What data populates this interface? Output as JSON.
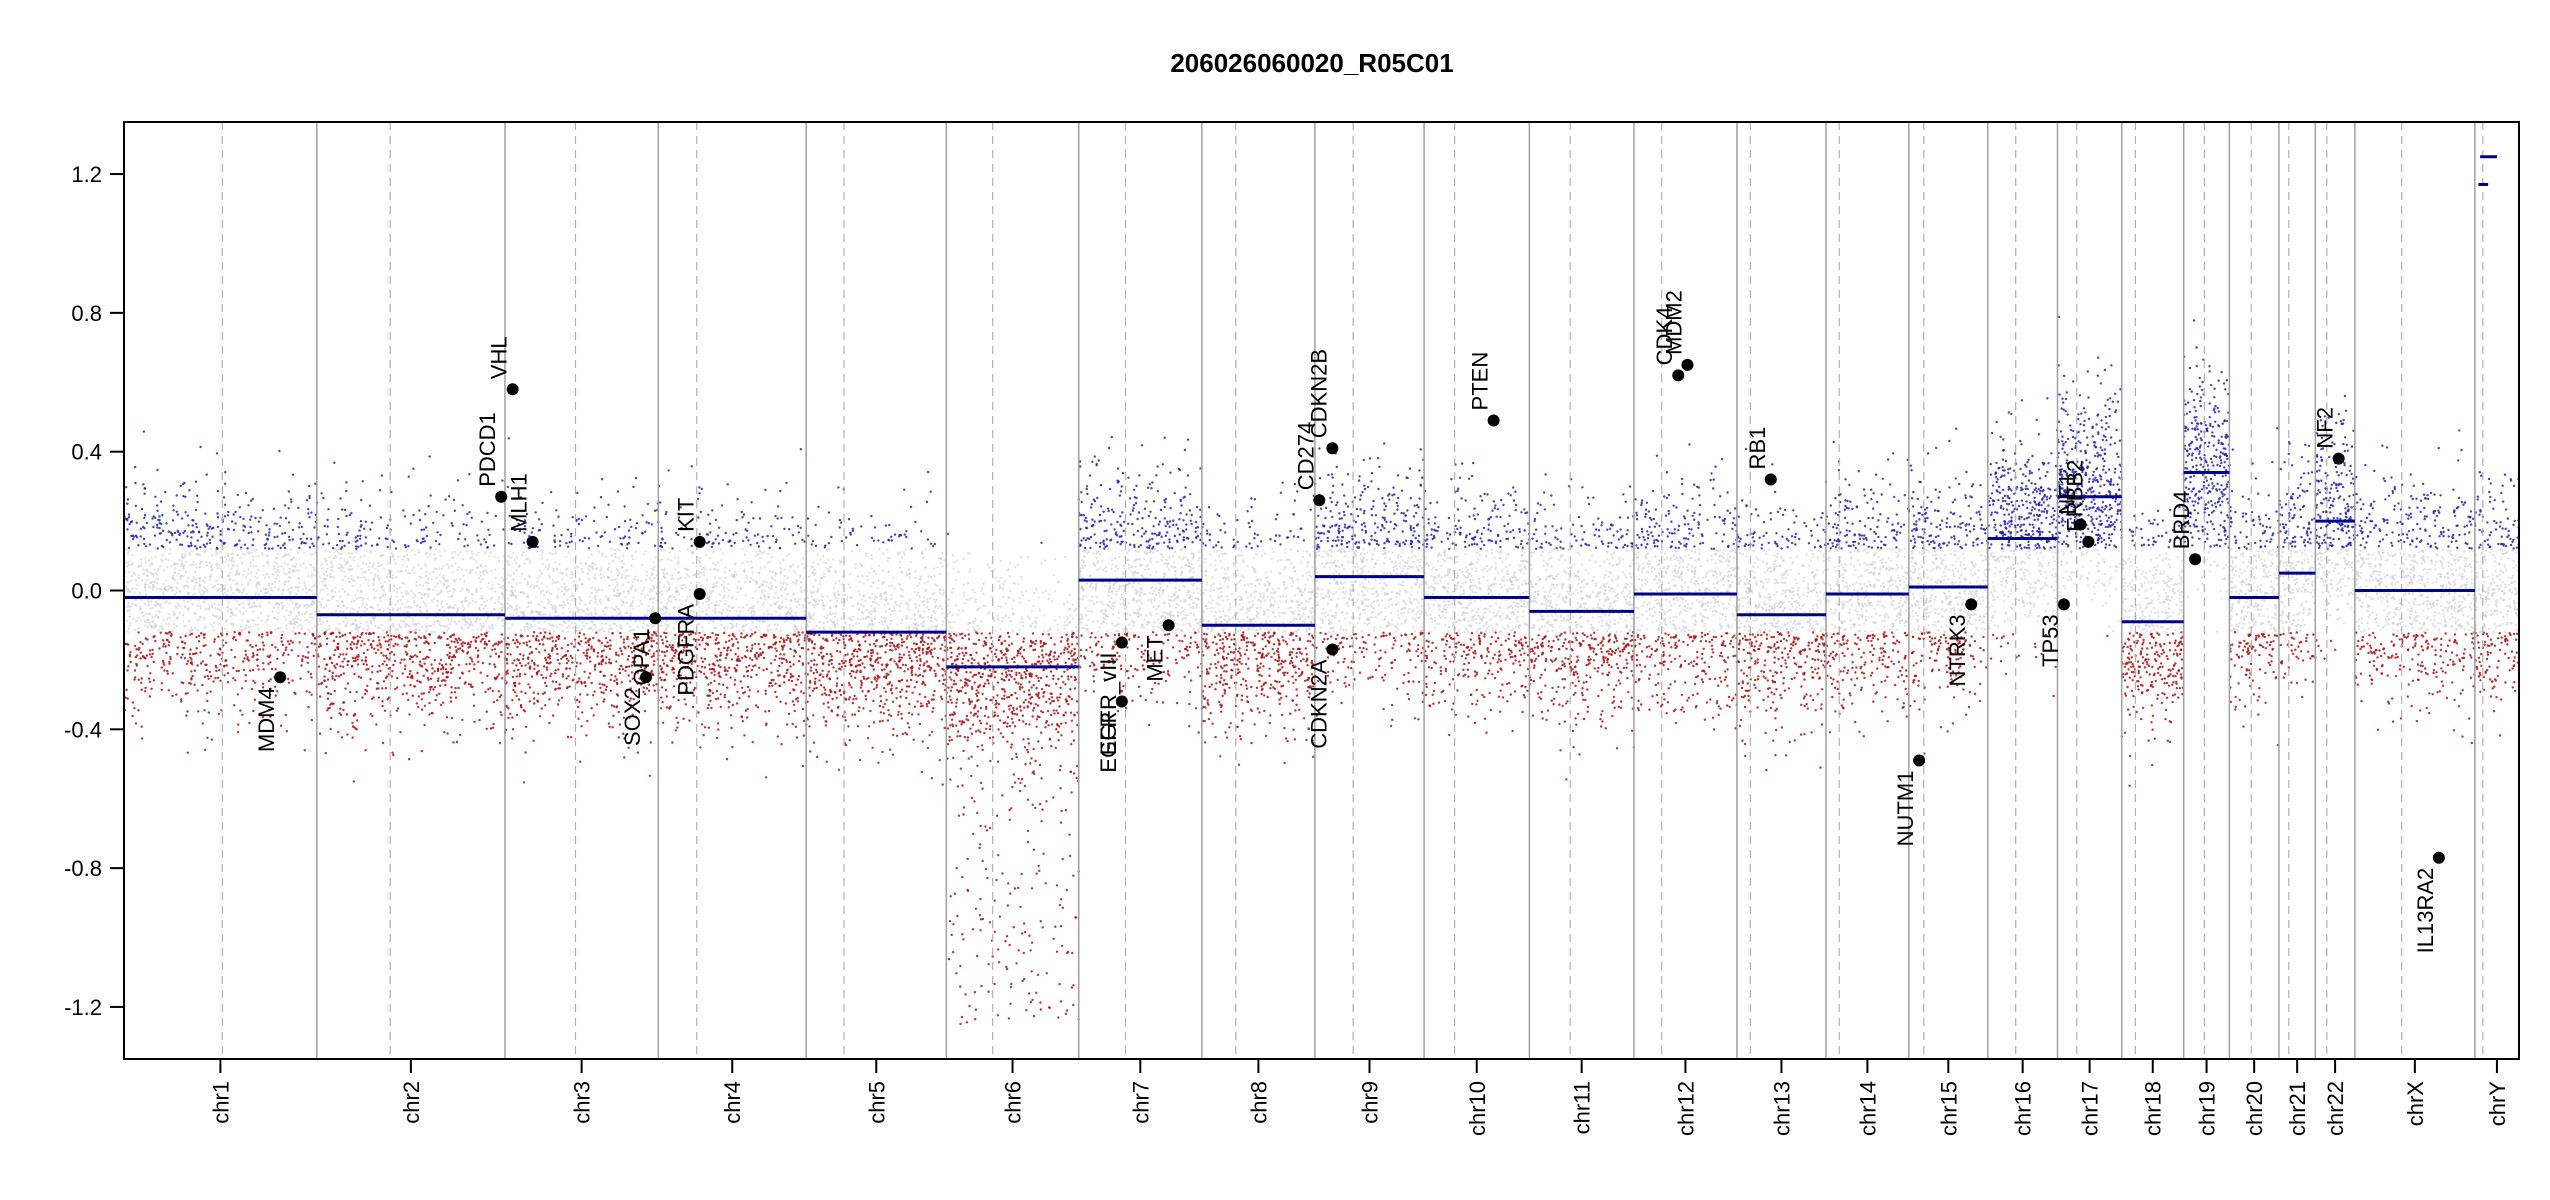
{
  "chart_data": {
    "type": "scatter",
    "title": "206026060020_R05C01",
    "xlabel": "",
    "ylabel": "",
    "ylim": [
      -1.35,
      1.35
    ],
    "y_ticks": [
      -1.2,
      -0.8,
      -0.4,
      0.0,
      0.4,
      0.8,
      1.2
    ],
    "y_tick_labels": [
      "-1.2",
      "-0.8",
      "-0.4",
      "0.0",
      "0.4",
      "0.8",
      "1.2"
    ],
    "grid": false,
    "chromosomes": [
      {
        "name": "chr1",
        "size": 249,
        "centromere": 0.51,
        "segments": [
          {
            "from": 0,
            "to": 1,
            "value": -0.02
          }
        ]
      },
      {
        "name": "chr2",
        "size": 243,
        "centromere": 0.39,
        "segments": [
          {
            "from": 0,
            "to": 1,
            "value": -0.07
          }
        ]
      },
      {
        "name": "chr3",
        "size": 198,
        "centromere": 0.46,
        "segments": [
          {
            "from": 0,
            "to": 1,
            "value": -0.08
          }
        ]
      },
      {
        "name": "chr4",
        "size": 191,
        "centromere": 0.26,
        "segments": [
          {
            "from": 0,
            "to": 1,
            "value": -0.08
          }
        ]
      },
      {
        "name": "chr5",
        "size": 181,
        "centromere": 0.27,
        "segments": [
          {
            "from": 0,
            "to": 1,
            "value": -0.12
          }
        ]
      },
      {
        "name": "chr6",
        "size": 171,
        "centromere": 0.35,
        "segments": [
          {
            "from": 0,
            "to": 1,
            "value": -0.22
          }
        ]
      },
      {
        "name": "chr7",
        "size": 159,
        "centromere": 0.38,
        "segments": [
          {
            "from": 0,
            "to": 1,
            "value": 0.03
          }
        ]
      },
      {
        "name": "chr8",
        "size": 146,
        "centromere": 0.3,
        "segments": [
          {
            "from": 0,
            "to": 1,
            "value": -0.1
          }
        ]
      },
      {
        "name": "chr9",
        "size": 141,
        "centromere": 0.35,
        "segments": [
          {
            "from": 0,
            "to": 1,
            "value": 0.04
          }
        ]
      },
      {
        "name": "chr10",
        "size": 136,
        "centromere": 0.29,
        "segments": [
          {
            "from": 0,
            "to": 1,
            "value": -0.02
          }
        ]
      },
      {
        "name": "chr11",
        "size": 135,
        "centromere": 0.39,
        "segments": [
          {
            "from": 0,
            "to": 1,
            "value": -0.06
          }
        ]
      },
      {
        "name": "chr12",
        "size": 133,
        "centromere": 0.27,
        "segments": [
          {
            "from": 0,
            "to": 1,
            "value": -0.01
          }
        ]
      },
      {
        "name": "chr13",
        "size": 115,
        "centromere": 0.15,
        "segments": [
          {
            "from": 0,
            "to": 1,
            "value": -0.07
          }
        ]
      },
      {
        "name": "chr14",
        "size": 107,
        "centromere": 0.16,
        "segments": [
          {
            "from": 0,
            "to": 1,
            "value": -0.01
          }
        ]
      },
      {
        "name": "chr15",
        "size": 102,
        "centromere": 0.19,
        "segments": [
          {
            "from": 0,
            "to": 1,
            "value": 0.01
          }
        ]
      },
      {
        "name": "chr16",
        "size": 90,
        "centromere": 0.4,
        "segments": [
          {
            "from": 0,
            "to": 1,
            "value": 0.15
          }
        ]
      },
      {
        "name": "chr17",
        "size": 83,
        "centromere": 0.3,
        "segments": [
          {
            "from": 0,
            "to": 1,
            "value": 0.27
          }
        ]
      },
      {
        "name": "chr18",
        "size": 80,
        "centromere": 0.22,
        "segments": [
          {
            "from": 0,
            "to": 1,
            "value": -0.09
          }
        ]
      },
      {
        "name": "chr19",
        "size": 59,
        "centromere": 0.45,
        "segments": [
          {
            "from": 0,
            "to": 1,
            "value": 0.34
          }
        ]
      },
      {
        "name": "chr20",
        "size": 64,
        "centromere": 0.44,
        "segments": [
          {
            "from": 0,
            "to": 1,
            "value": -0.02
          }
        ]
      },
      {
        "name": "chr21",
        "size": 47,
        "centromere": 0.27,
        "segments": [
          {
            "from": 0,
            "to": 1,
            "value": 0.05
          }
        ]
      },
      {
        "name": "chr22",
        "size": 51,
        "centromere": 0.29,
        "segments": [
          {
            "from": 0,
            "to": 1,
            "value": 0.2
          }
        ]
      },
      {
        "name": "chrX",
        "size": 155,
        "centromere": 0.39,
        "segments": [
          {
            "from": 0,
            "to": 1,
            "value": 0.0
          }
        ]
      },
      {
        "name": "chrY",
        "size": 57,
        "centromere": 0.18,
        "segments": [
          {
            "from": 0.08,
            "to": 0.3,
            "value": 1.17
          },
          {
            "from": 0.12,
            "to": 0.5,
            "value": 1.25
          }
        ]
      }
    ],
    "genes": [
      {
        "name": "MDM4",
        "chrom": "chr1",
        "pos": 0.81,
        "value": -0.25
      },
      {
        "name": "PDCD1",
        "chrom": "chr2",
        "pos": 0.98,
        "value": 0.27
      },
      {
        "name": "VHL",
        "chrom": "chr3",
        "pos": 0.05,
        "value": 0.58
      },
      {
        "name": "MLH1",
        "chrom": "chr3",
        "pos": 0.18,
        "value": 0.14
      },
      {
        "name": "SOX2",
        "chrom": "chr3",
        "pos": 0.92,
        "value": -0.25
      },
      {
        "name": "OPA1",
        "chrom": "chr3",
        "pos": 0.98,
        "value": -0.08
      },
      {
        "name": "KIT",
        "chrom": "chr4",
        "pos": 0.28,
        "value": 0.14
      },
      {
        "name": "PDGFRA",
        "chrom": "chr4",
        "pos": 0.28,
        "value": -0.01
      },
      {
        "name": "EGFR",
        "chrom": "chr7",
        "pos": 0.35,
        "value": -0.32
      },
      {
        "name": "EGFR_vIII",
        "chrom": "chr7",
        "pos": 0.35,
        "value": -0.15
      },
      {
        "name": "MET",
        "chrom": "chr7",
        "pos": 0.73,
        "value": -0.1
      },
      {
        "name": "CD274",
        "chrom": "chr9",
        "pos": 0.04,
        "value": 0.26
      },
      {
        "name": "CDKN2B",
        "chrom": "chr9",
        "pos": 0.16,
        "value": 0.41
      },
      {
        "name": "CDKN2A",
        "chrom": "chr9",
        "pos": 0.16,
        "value": -0.17
      },
      {
        "name": "PTEN",
        "chrom": "chr10",
        "pos": 0.66,
        "value": 0.49
      },
      {
        "name": "CDK4",
        "chrom": "chr12",
        "pos": 0.43,
        "value": 0.62
      },
      {
        "name": "MDM2",
        "chrom": "chr12",
        "pos": 0.52,
        "value": 0.65
      },
      {
        "name": "RB1",
        "chrom": "chr13",
        "pos": 0.38,
        "value": 0.32
      },
      {
        "name": "NUTM1",
        "chrom": "chr15",
        "pos": 0.13,
        "value": -0.49
      },
      {
        "name": "NTRK3",
        "chrom": "chr15",
        "pos": 0.79,
        "value": -0.04
      },
      {
        "name": "TP53",
        "chrom": "chr17",
        "pos": 0.1,
        "value": -0.04
      },
      {
        "name": "NF1",
        "chrom": "chr17",
        "pos": 0.36,
        "value": 0.19
      },
      {
        "name": "ERBB2",
        "chrom": "chr17",
        "pos": 0.48,
        "value": 0.14
      },
      {
        "name": "BRD4",
        "chrom": "chr19",
        "pos": 0.25,
        "value": 0.09
      },
      {
        "name": "NF2",
        "chrom": "chr22",
        "pos": 0.59,
        "value": 0.38
      },
      {
        "name": "IL13RA2",
        "chrom": "chrX",
        "pos": 0.7,
        "value": -0.77
      }
    ],
    "scatter_style": {
      "gain_color": "#2323a8",
      "loss_color": "#a31414",
      "neutral_color": "#c8c8c8",
      "segment_color": "#00008b",
      "gene_point_color": "#000000"
    }
  }
}
